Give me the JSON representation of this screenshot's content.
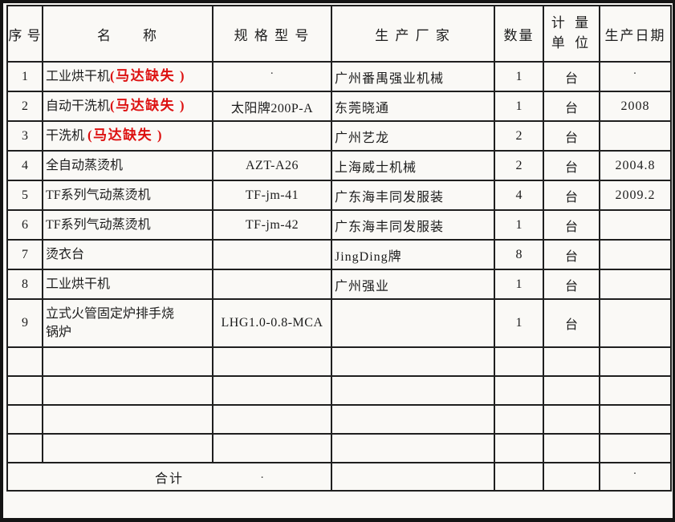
{
  "colors": {
    "paper": "#faf9f6",
    "line": "#1f1f1f",
    "ink": "#1c1c1c",
    "red": "#dd1010"
  },
  "table": {
    "headers": {
      "index": "序 号",
      "name": "名　　称",
      "spec": "规 格 型 号",
      "manufacturer": "生 产 厂 家",
      "quantity": "数量",
      "unit": "计 量\n单 位",
      "date": "生产日期"
    },
    "rows": [
      {
        "index": "1",
        "name": "工业烘干机",
        "note": "(马达缺失 )",
        "spec": "",
        "spec_mark": "·",
        "manufacturer": "广州番禺强业机械",
        "quantity": "1",
        "unit": "台",
        "date": "",
        "date_mark": "·"
      },
      {
        "index": "2",
        "name": "自动干洗机",
        "note": "(马达缺失 )",
        "spec": "太阳牌200P-A",
        "spec_mark": "",
        "manufacturer": "东莞晓通",
        "quantity": "1",
        "unit": "台",
        "date": "2008",
        "date_mark": ""
      },
      {
        "index": "3",
        "name": "干洗机 ",
        "note": "(马达缺失 )",
        "spec": "",
        "spec_mark": "",
        "manufacturer": "广州艺龙",
        "quantity": "2",
        "unit": "台",
        "date": "",
        "date_mark": ""
      },
      {
        "index": "4",
        "name": "全自动蒸烫机",
        "note": "",
        "spec": "AZT-A26",
        "spec_mark": "",
        "manufacturer": "上海威士机械",
        "quantity": "2",
        "unit": "台",
        "date": "2004.8",
        "date_mark": ""
      },
      {
        "index": "5",
        "name": "TF系列气动蒸烫机",
        "note": "",
        "spec": "TF-jm-41",
        "spec_mark": "",
        "manufacturer": "广东海丰同发服装",
        "quantity": "4",
        "unit": "台",
        "date": "2009.2",
        "date_mark": ""
      },
      {
        "index": "6",
        "name": "TF系列气动蒸烫机",
        "note": "",
        "spec": "TF-jm-42",
        "spec_mark": "",
        "manufacturer": "广东海丰同发服装",
        "quantity": "1",
        "unit": "台",
        "date": "",
        "date_mark": ""
      },
      {
        "index": "7",
        "name": "烫衣台",
        "note": "",
        "spec": "",
        "spec_mark": "",
        "manufacturer": "JingDing牌",
        "quantity": "8",
        "unit": "台",
        "date": "",
        "date_mark": ""
      },
      {
        "index": "8",
        "name": "工业烘干机",
        "note": "",
        "spec": "",
        "spec_mark": "",
        "manufacturer": "广州强业",
        "quantity": "1",
        "unit": "台",
        "date": "",
        "date_mark": ""
      },
      {
        "index": "9",
        "name": "立式火管固定炉排手烧\n锅炉",
        "note": "",
        "spec": "LHG1.0-0.8-MCA",
        "spec_mark": "",
        "manufacturer": "",
        "quantity": "1",
        "unit": "台",
        "date": "",
        "date_mark": ""
      }
    ],
    "empty_rows": 4,
    "total": {
      "label": "合计",
      "label_mark": "·",
      "date_mark": "·"
    }
  }
}
